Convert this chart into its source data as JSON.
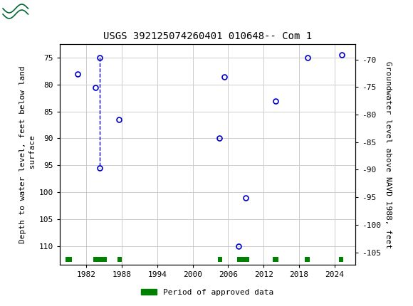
{
  "title": "USGS 392125074260401 010648-- Com 1",
  "ylabel_left": "Depth to water level, feet below land\n surface",
  "ylabel_right": "Groundwater level above NAVD 1988, feet",
  "ylim_left": [
    113.5,
    72.5
  ],
  "ylim_right": [
    -107.25,
    -67.25
  ],
  "yticks_left": [
    75,
    80,
    85,
    90,
    95,
    100,
    105,
    110
  ],
  "yticks_right": [
    -70,
    -75,
    -80,
    -85,
    -90,
    -95,
    -100,
    -105
  ],
  "xlim": [
    1977.5,
    2027.5
  ],
  "xticks": [
    1982,
    1988,
    1994,
    2000,
    2006,
    2012,
    2018,
    2024
  ],
  "data_points": [
    {
      "year": 1980.5,
      "depth": 78.0
    },
    {
      "year": 1983.5,
      "depth": 80.5
    },
    {
      "year": 1984.2,
      "depth": 75.0
    },
    {
      "year": 1984.2,
      "depth": 95.5
    },
    {
      "year": 1987.5,
      "depth": 86.5
    },
    {
      "year": 2004.5,
      "depth": 90.0
    },
    {
      "year": 2005.3,
      "depth": 78.5
    },
    {
      "year": 2007.8,
      "depth": 110.0
    },
    {
      "year": 2009.0,
      "depth": 101.0
    },
    {
      "year": 2014.0,
      "depth": 83.0
    },
    {
      "year": 2019.5,
      "depth": 75.0
    },
    {
      "year": 2025.2,
      "depth": 74.5
    }
  ],
  "dashed_line_points": [
    {
      "year": 1984.2,
      "depth": 75.0
    },
    {
      "year": 1984.2,
      "depth": 95.5
    }
  ],
  "approved_periods": [
    {
      "start": 1978.5,
      "end": 1979.5
    },
    {
      "start": 1983.2,
      "end": 1985.5
    },
    {
      "start": 1987.2,
      "end": 1988.0
    },
    {
      "start": 2004.2,
      "end": 2005.0
    },
    {
      "start": 2007.5,
      "end": 2009.5
    },
    {
      "start": 2013.5,
      "end": 2014.5
    },
    {
      "start": 2019.0,
      "end": 2019.8
    },
    {
      "start": 2024.8,
      "end": 2025.5
    }
  ],
  "approved_bar_y": 112.5,
  "approved_bar_height": 1.0,
  "point_color": "#0000cc",
  "dashed_color": "#0000cc",
  "approved_color": "#008000",
  "grid_color": "#cccccc",
  "background_color": "#ffffff",
  "header_color": "#006633",
  "title_fontsize": 10,
  "tick_fontsize": 8,
  "label_fontsize": 8
}
